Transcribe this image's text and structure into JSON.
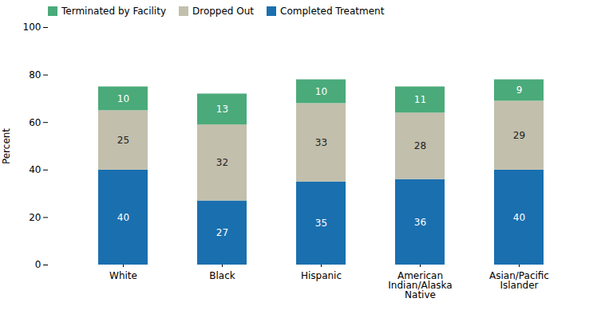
{
  "chart_data": {
    "type": "bar",
    "stacked": true,
    "data_labels": true,
    "ylabel": "Percent",
    "categories": [
      "White",
      "Black",
      "Hispanic",
      "American\nIndian/Alaska\nNative",
      "Asian/Pacific\nIslander"
    ],
    "series": [
      {
        "name": "Completed Treatment",
        "color": "#1a6faf",
        "values": [
          40,
          27,
          35,
          36,
          40
        ]
      },
      {
        "name": "Dropped Out",
        "color": "#c2bfac",
        "values": [
          25,
          32,
          33,
          28,
          29
        ]
      },
      {
        "name": "Terminated by Facility",
        "color": "#4aaa7a",
        "values": [
          10,
          13,
          10,
          11,
          9
        ]
      }
    ],
    "ylim": [
      0,
      100
    ],
    "yticks": [
      0,
      20,
      40,
      60,
      80,
      100
    ],
    "grid": false,
    "legend": "upper left"
  }
}
